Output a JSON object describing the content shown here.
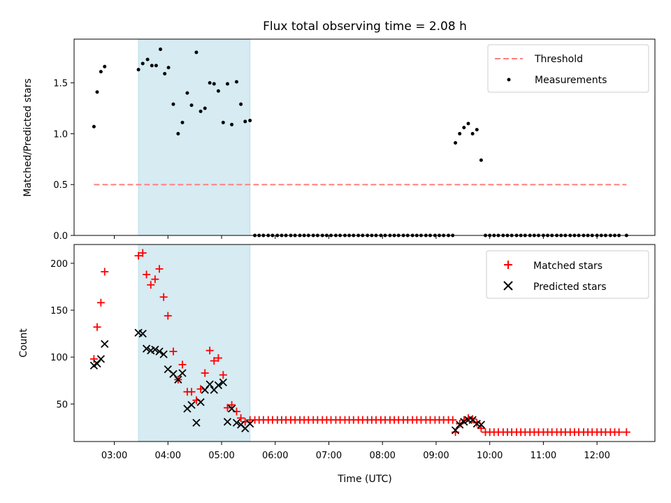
{
  "chart_data": [
    {
      "type": "scatter",
      "title": "Flux total observing time = 2.08 h",
      "ylabel": "Matched/Predicted stars",
      "xlabel": "",
      "x_range_hours": [
        2.25,
        13.08
      ],
      "ylim": [
        0,
        1.93
      ],
      "yticks": [
        0.0,
        0.5,
        1.0,
        1.5
      ],
      "ytick_labels": [
        "0.0",
        "0.5",
        "1.0",
        "1.5"
      ],
      "grid": false,
      "legend_position": "top-right",
      "shaded_span_hours": [
        3.45,
        5.53
      ],
      "threshold": {
        "name": "Threshold",
        "value": 0.5,
        "x_from": 2.62,
        "x_to": 12.55,
        "color": "#ff8080"
      },
      "series": [
        {
          "name": "Measurements",
          "color": "#000000",
          "points": [
            [
              2.62,
              1.07
            ],
            [
              2.68,
              1.41
            ],
            [
              2.75,
              1.61
            ],
            [
              2.82,
              1.66
            ],
            [
              3.45,
              1.63
            ],
            [
              3.53,
              1.69
            ],
            [
              3.62,
              1.73
            ],
            [
              3.7,
              1.67
            ],
            [
              3.78,
              1.67
            ],
            [
              3.86,
              1.83
            ],
            [
              3.94,
              1.59
            ],
            [
              4.01,
              1.65
            ],
            [
              4.1,
              1.29
            ],
            [
              4.19,
              1.0
            ],
            [
              4.27,
              1.11
            ],
            [
              4.36,
              1.4
            ],
            [
              4.44,
              1.28
            ],
            [
              4.53,
              1.8
            ],
            [
              4.61,
              1.22
            ],
            [
              4.69,
              1.25
            ],
            [
              4.78,
              1.5
            ],
            [
              4.86,
              1.49
            ],
            [
              4.94,
              1.42
            ],
            [
              5.03,
              1.11
            ],
            [
              5.11,
              1.49
            ],
            [
              5.19,
              1.09
            ],
            [
              5.28,
              1.51
            ],
            [
              5.36,
              1.29
            ],
            [
              5.44,
              1.12
            ],
            [
              5.53,
              1.13
            ],
            [
              5.62,
              0
            ],
            [
              5.7,
              0
            ],
            [
              5.78,
              0
            ],
            [
              5.87,
              0
            ],
            [
              5.95,
              0
            ],
            [
              6.04,
              0
            ],
            [
              6.12,
              0
            ],
            [
              6.2,
              0
            ],
            [
              6.29,
              0
            ],
            [
              6.37,
              0
            ],
            [
              6.46,
              0
            ],
            [
              6.54,
              0
            ],
            [
              6.62,
              0
            ],
            [
              6.71,
              0
            ],
            [
              6.79,
              0
            ],
            [
              6.88,
              0
            ],
            [
              6.96,
              0
            ],
            [
              7.04,
              0
            ],
            [
              7.13,
              0
            ],
            [
              7.21,
              0
            ],
            [
              7.3,
              0
            ],
            [
              7.38,
              0
            ],
            [
              7.46,
              0
            ],
            [
              7.55,
              0
            ],
            [
              7.63,
              0
            ],
            [
              7.72,
              0
            ],
            [
              7.8,
              0
            ],
            [
              7.88,
              0
            ],
            [
              7.97,
              0
            ],
            [
              8.05,
              0
            ],
            [
              8.14,
              0
            ],
            [
              8.22,
              0
            ],
            [
              8.3,
              0
            ],
            [
              8.39,
              0
            ],
            [
              8.47,
              0
            ],
            [
              8.56,
              0
            ],
            [
              8.64,
              0
            ],
            [
              8.72,
              0
            ],
            [
              8.81,
              0
            ],
            [
              8.89,
              0
            ],
            [
              8.98,
              0
            ],
            [
              9.06,
              0
            ],
            [
              9.14,
              0
            ],
            [
              9.23,
              0
            ],
            [
              9.31,
              0
            ],
            [
              9.36,
              0.91
            ],
            [
              9.44,
              1.0
            ],
            [
              9.52,
              1.06
            ],
            [
              9.6,
              1.1
            ],
            [
              9.68,
              1.0
            ],
            [
              9.76,
              1.04
            ],
            [
              9.84,
              0.74
            ],
            [
              9.92,
              0
            ],
            [
              10.0,
              0
            ],
            [
              10.08,
              0
            ],
            [
              10.16,
              0
            ],
            [
              10.25,
              0
            ],
            [
              10.33,
              0
            ],
            [
              10.41,
              0
            ],
            [
              10.5,
              0
            ],
            [
              10.58,
              0
            ],
            [
              10.66,
              0
            ],
            [
              10.75,
              0
            ],
            [
              10.83,
              0
            ],
            [
              10.91,
              0
            ],
            [
              11.0,
              0
            ],
            [
              11.08,
              0
            ],
            [
              11.16,
              0
            ],
            [
              11.25,
              0
            ],
            [
              11.33,
              0
            ],
            [
              11.41,
              0
            ],
            [
              11.5,
              0
            ],
            [
              11.58,
              0
            ],
            [
              11.66,
              0
            ],
            [
              11.75,
              0
            ],
            [
              11.83,
              0
            ],
            [
              11.91,
              0
            ],
            [
              12.0,
              0
            ],
            [
              12.08,
              0
            ],
            [
              12.16,
              0
            ],
            [
              12.25,
              0
            ],
            [
              12.33,
              0
            ],
            [
              12.41,
              0
            ],
            [
              12.55,
              0
            ]
          ]
        }
      ]
    },
    {
      "type": "scatter",
      "title": "",
      "ylabel": "Count",
      "xlabel": "Time (UTC)",
      "x_range_hours": [
        2.25,
        13.08
      ],
      "xticks_hours": [
        3,
        4,
        5,
        6,
        7,
        8,
        9,
        10,
        11,
        12
      ],
      "xtick_labels": [
        "03:00",
        "04:00",
        "05:00",
        "06:00",
        "07:00",
        "08:00",
        "09:00",
        "10:00",
        "11:00",
        "12:00"
      ],
      "ylim": [
        10,
        220
      ],
      "yticks": [
        50,
        100,
        150,
        200
      ],
      "ytick_labels": [
        "50",
        "100",
        "150",
        "200"
      ],
      "grid": false,
      "legend_position": "top-right",
      "shaded_span_hours": [
        3.45,
        5.53
      ],
      "series": [
        {
          "name": "Matched stars",
          "color": "#ff0000",
          "marker": "plus",
          "points": [
            [
              2.62,
              98
            ],
            [
              2.68,
              132
            ],
            [
              2.75,
              158
            ],
            [
              2.82,
              191
            ],
            [
              3.45,
              208
            ],
            [
              3.53,
              211
            ],
            [
              3.6,
              188
            ],
            [
              3.68,
              177
            ],
            [
              3.76,
              183
            ],
            [
              3.84,
              194
            ],
            [
              3.92,
              164
            ],
            [
              4.0,
              144
            ],
            [
              4.1,
              106
            ],
            [
              4.19,
              76
            ],
            [
              4.27,
              92
            ],
            [
              4.36,
              63
            ],
            [
              4.44,
              63
            ],
            [
              4.53,
              54
            ],
            [
              4.61,
              66
            ],
            [
              4.69,
              83
            ],
            [
              4.78,
              107
            ],
            [
              4.86,
              96
            ],
            [
              4.94,
              99
            ],
            [
              5.03,
              81
            ],
            [
              5.11,
              46
            ],
            [
              5.19,
              49
            ],
            [
              5.28,
              42
            ],
            [
              5.36,
              35
            ],
            [
              5.44,
              31
            ],
            [
              5.53,
              33
            ],
            [
              5.62,
              33
            ],
            [
              5.7,
              33
            ],
            [
              5.78,
              33
            ],
            [
              5.87,
              33
            ],
            [
              5.95,
              33
            ],
            [
              6.04,
              33
            ],
            [
              6.12,
              33
            ],
            [
              6.2,
              33
            ],
            [
              6.29,
              33
            ],
            [
              6.37,
              33
            ],
            [
              6.46,
              33
            ],
            [
              6.54,
              33
            ],
            [
              6.62,
              33
            ],
            [
              6.71,
              33
            ],
            [
              6.79,
              33
            ],
            [
              6.88,
              33
            ],
            [
              6.96,
              33
            ],
            [
              7.04,
              33
            ],
            [
              7.13,
              33
            ],
            [
              7.21,
              33
            ],
            [
              7.3,
              33
            ],
            [
              7.38,
              33
            ],
            [
              7.46,
              33
            ],
            [
              7.55,
              33
            ],
            [
              7.63,
              33
            ],
            [
              7.72,
              33
            ],
            [
              7.8,
              33
            ],
            [
              7.88,
              33
            ],
            [
              7.97,
              33
            ],
            [
              8.05,
              33
            ],
            [
              8.14,
              33
            ],
            [
              8.22,
              33
            ],
            [
              8.3,
              33
            ],
            [
              8.39,
              33
            ],
            [
              8.47,
              33
            ],
            [
              8.56,
              33
            ],
            [
              8.64,
              33
            ],
            [
              8.72,
              33
            ],
            [
              8.81,
              33
            ],
            [
              8.89,
              33
            ],
            [
              8.98,
              33
            ],
            [
              9.06,
              33
            ],
            [
              9.14,
              33
            ],
            [
              9.23,
              33
            ],
            [
              9.31,
              33
            ],
            [
              9.36,
              20
            ],
            [
              9.44,
              29
            ],
            [
              9.52,
              33
            ],
            [
              9.6,
              35
            ],
            [
              9.68,
              34
            ],
            [
              9.76,
              30
            ],
            [
              9.84,
              24
            ],
            [
              9.92,
              20
            ],
            [
              10.0,
              20
            ],
            [
              10.08,
              20
            ],
            [
              10.16,
              20
            ],
            [
              10.25,
              20
            ],
            [
              10.33,
              20
            ],
            [
              10.41,
              20
            ],
            [
              10.5,
              20
            ],
            [
              10.58,
              20
            ],
            [
              10.66,
              20
            ],
            [
              10.75,
              20
            ],
            [
              10.83,
              20
            ],
            [
              10.91,
              20
            ],
            [
              11.0,
              20
            ],
            [
              11.08,
              20
            ],
            [
              11.16,
              20
            ],
            [
              11.25,
              20
            ],
            [
              11.33,
              20
            ],
            [
              11.41,
              20
            ],
            [
              11.5,
              20
            ],
            [
              11.58,
              20
            ],
            [
              11.66,
              20
            ],
            [
              11.75,
              20
            ],
            [
              11.83,
              20
            ],
            [
              11.91,
              20
            ],
            [
              12.0,
              20
            ],
            [
              12.08,
              20
            ],
            [
              12.16,
              20
            ],
            [
              12.25,
              20
            ],
            [
              12.33,
              20
            ],
            [
              12.41,
              20
            ],
            [
              12.55,
              20
            ]
          ]
        },
        {
          "name": "Predicted stars",
          "color": "#000000",
          "marker": "x",
          "points": [
            [
              2.62,
              91
            ],
            [
              2.68,
              93
            ],
            [
              2.75,
              98
            ],
            [
              2.82,
              114
            ],
            [
              3.45,
              126
            ],
            [
              3.53,
              125
            ],
            [
              3.6,
              109
            ],
            [
              3.68,
              107
            ],
            [
              3.76,
              108
            ],
            [
              3.84,
              106
            ],
            [
              3.92,
              103
            ],
            [
              4.0,
              87
            ],
            [
              4.1,
              82
            ],
            [
              4.19,
              76
            ],
            [
              4.27,
              83
            ],
            [
              4.36,
              45
            ],
            [
              4.44,
              49
            ],
            [
              4.53,
              30
            ],
            [
              4.61,
              52
            ],
            [
              4.69,
              65
            ],
            [
              4.78,
              71
            ],
            [
              4.86,
              65
            ],
            [
              4.94,
              70
            ],
            [
              5.03,
              73
            ],
            [
              5.11,
              31
            ],
            [
              5.19,
              45
            ],
            [
              5.28,
              30
            ],
            [
              5.36,
              28
            ],
            [
              5.44,
              24
            ],
            [
              5.53,
              29
            ],
            [
              9.36,
              22
            ],
            [
              9.44,
              28
            ],
            [
              9.52,
              31
            ],
            [
              9.6,
              33
            ],
            [
              9.68,
              33
            ],
            [
              9.76,
              29
            ],
            [
              9.84,
              28
            ]
          ]
        }
      ]
    }
  ]
}
